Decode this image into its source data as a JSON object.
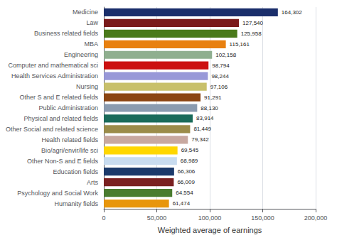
{
  "chart_data": {
    "type": "bar",
    "orientation": "horizontal",
    "xlabel": "Weighted average of earnings",
    "categories": [
      "Humanity fields",
      "Psychology and Social Work",
      "Arts",
      "Education fields",
      "Other Non-S and E fields",
      "Bio/agri/envir/life sci",
      "Health related fields",
      "Other Social and related science",
      "Physical and related fields",
      "Public Administration",
      "Other S and E related fields",
      "Nursing",
      "Health Services Administration",
      "Computer and mathematical sci",
      "Engineering",
      "MBA",
      "Business related fields",
      "Law",
      "Medicine"
    ],
    "values": [
      61474,
      64554,
      66009,
      66306,
      68989,
      69545,
      79342,
      81449,
      83914,
      88130,
      91291,
      97106,
      98244,
      98794,
      102158,
      115161,
      125958,
      127540,
      164302
    ],
    "value_labels": [
      "61,474",
      "64,554",
      "66,009",
      "66,306",
      "68,989",
      "69,545",
      "79,342",
      "81,449",
      "83,914",
      "88,130",
      "91,291",
      "97,106",
      "98,244",
      "98,794",
      "102,158",
      "115,161",
      "125,958",
      "127,540",
      "164,302"
    ],
    "data_labels": true,
    "colors": [
      "#E8960C",
      "#4A7C2F",
      "#7A2020",
      "#1B3A6B",
      "#C8DCF0",
      "#FFD700",
      "#C8A8A0",
      "#9B8C4A",
      "#1A6B5A",
      "#8A9BB0",
      "#8B4513",
      "#C8C06A",
      "#9898D8",
      "#CC1010",
      "#8FAF8F",
      "#E88010",
      "#4A7A1A",
      "#7A1A1A",
      "#1A2E6B"
    ],
    "xlim": [
      0,
      200000
    ],
    "xticks": [
      0,
      {
        "value": 50000,
        "label": "50,000"
      },
      {
        "value": 100000,
        "label": "100,000"
      },
      {
        "value": 150000,
        "label": "150,000"
      },
      {
        "value": 200000,
        "label": "200,000"
      }
    ],
    "grid": true
  }
}
